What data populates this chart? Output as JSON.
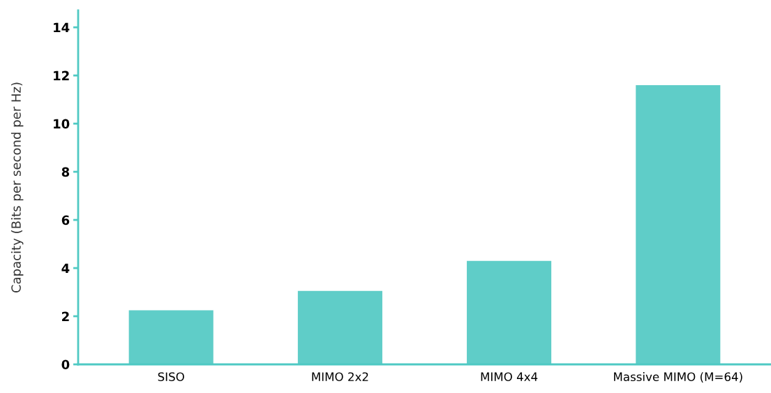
{
  "chart_data": {
    "type": "bar",
    "ylabel": "Capacity (Bits per second per Hz)",
    "categories": [
      "SISO",
      "MIMO 2x2",
      "MIMO 4x4",
      "Massive MIMO (M=64)"
    ],
    "values": [
      2.25,
      3.05,
      4.3,
      11.6
    ],
    "color": "#5fcdc8",
    "ylim": [
      0,
      14.7
    ],
    "yticks": [
      0,
      2,
      4,
      6,
      8,
      10,
      12,
      14
    ],
    "grid": false,
    "legend": false
  }
}
